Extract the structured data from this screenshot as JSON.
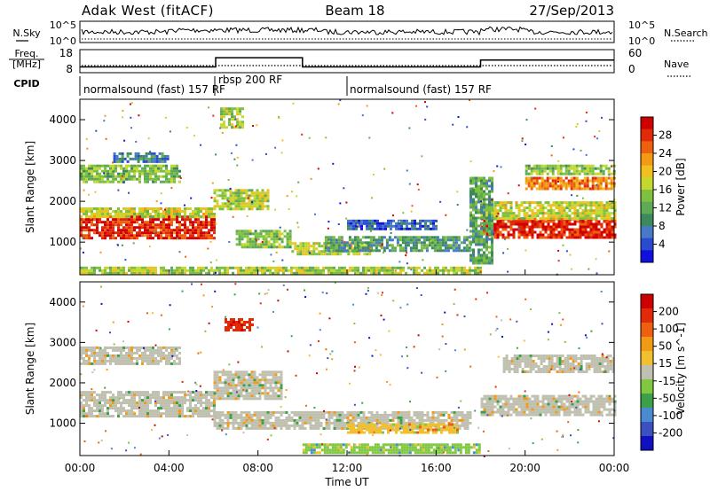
{
  "header": {
    "station": "Adak West (fitACF)",
    "beam": "Beam 18",
    "date": "27/Sep/2013"
  },
  "panels": {
    "nsky": {
      "label": "N.Sky",
      "right_label": "N.Search",
      "ticks_left": [
        "10^5",
        "10^0"
      ],
      "ticks_right": [
        "10^5",
        "10^0"
      ]
    },
    "freq": {
      "label_line1": "Freq.",
      "label_line2": "[MHz]",
      "right_label": "Nave",
      "ticks_left": [
        "18",
        "8"
      ],
      "ticks_right": [
        "60",
        "0"
      ],
      "freq_steps": [
        {
          "x_start": 0,
          "x_end": 6.1,
          "value": 10.5
        },
        {
          "x_start": 6.1,
          "x_end": 10,
          "value": 14.5
        },
        {
          "x_start": 10,
          "x_end": 18,
          "value": 10.5
        },
        {
          "x_start": 18,
          "x_end": 24,
          "value": 13.5
        }
      ]
    },
    "cpid": {
      "label": "CPID",
      "segments": [
        {
          "x_start": 0,
          "x_end": 6.1,
          "text": "normalsound (fast) 157 RF"
        },
        {
          "x_start": 6.1,
          "x_end": 12,
          "text": "rbsp 200 RF"
        },
        {
          "x_start": 12,
          "x_end": 24,
          "text": "normalsound (fast) 157 RF"
        }
      ]
    }
  },
  "chart_data": [
    {
      "type": "heatmap",
      "quantity": "Power",
      "ylabel": "Slant Range [km]",
      "y_ticks": [
        1000,
        2000,
        3000,
        4000
      ],
      "ylim": [
        200,
        4500
      ],
      "colorbar": {
        "label": "Power [dB]",
        "ticks": [
          "4",
          "8",
          "12",
          "16",
          "20",
          "24",
          "28"
        ],
        "colors": [
          "#1010e0",
          "#2a4bd0",
          "#4878c8",
          "#3c8a5a",
          "#5faa55",
          "#7fc040",
          "#c4d830",
          "#f0c020",
          "#f39a15",
          "#ee6010",
          "#e02a0a",
          "#d00000"
        ]
      },
      "bands": [
        {
          "t0": 0.0,
          "t1": 6.0,
          "r0": 1100,
          "r1": 1650,
          "level": 0.92
        },
        {
          "t0": 0.0,
          "t1": 6.0,
          "r0": 1650,
          "r1": 1850,
          "level": 0.55
        },
        {
          "t0": 0.0,
          "t1": 4.5,
          "r0": 2500,
          "r1": 2900,
          "level": 0.42
        },
        {
          "t0": 1.5,
          "t1": 4.0,
          "r0": 3000,
          "r1": 3200,
          "level": 0.22
        },
        {
          "t0": 6.0,
          "t1": 8.5,
          "r0": 1800,
          "r1": 2300,
          "level": 0.52
        },
        {
          "t0": 7.0,
          "t1": 9.5,
          "r0": 900,
          "r1": 1300,
          "level": 0.45
        },
        {
          "t0": 9.5,
          "t1": 13.0,
          "r0": 700,
          "r1": 1000,
          "level": 0.55
        },
        {
          "t0": 11.0,
          "t1": 17.5,
          "r0": 800,
          "r1": 1150,
          "level": 0.3
        },
        {
          "t0": 12.0,
          "t1": 16.0,
          "r0": 1300,
          "r1": 1550,
          "level": 0.15
        },
        {
          "t0": 0.0,
          "t1": 18.0,
          "r0": 250,
          "r1": 400,
          "level": 0.5
        },
        {
          "t0": 18.0,
          "t1": 24.0,
          "r0": 1100,
          "r1": 1600,
          "level": 0.92
        },
        {
          "t0": 18.0,
          "t1": 24.0,
          "r0": 1600,
          "r1": 2000,
          "level": 0.55
        },
        {
          "t0": 20.0,
          "t1": 24.0,
          "r0": 2300,
          "r1": 2600,
          "level": 0.78
        },
        {
          "t0": 20.0,
          "t1": 24.0,
          "r0": 2700,
          "r1": 2900,
          "level": 0.45
        },
        {
          "t0": 6.3,
          "t1": 7.3,
          "r0": 3800,
          "r1": 4300,
          "level": 0.5
        },
        {
          "t0": 17.5,
          "t1": 18.5,
          "r0": 500,
          "r1": 2600,
          "level": 0.35
        }
      ]
    },
    {
      "type": "heatmap",
      "quantity": "Velocity",
      "ylabel": "Slant Range [km]",
      "xlabel": "Time UT",
      "x_ticks": [
        "00:00",
        "04:00",
        "08:00",
        "12:00",
        "16:00",
        "20:00",
        "00:00"
      ],
      "y_ticks": [
        1000,
        2000,
        3000,
        4000
      ],
      "ylim": [
        200,
        4500
      ],
      "colorbar": {
        "label": "Velocity [m s^-1]",
        "ticks": [
          "200",
          "100",
          "50",
          "15",
          "-15",
          "-50",
          "-100",
          "-200"
        ],
        "colors": [
          "#1010c0",
          "#3c50c0",
          "#4a8ad0",
          "#3ca04a",
          "#80c840",
          "#c0c0b0",
          "#f0c030",
          "#f39a15",
          "#ee6010",
          "#e02a0a",
          "#d00000"
        ]
      },
      "bands": [
        {
          "t0": 0.0,
          "t1": 6.0,
          "r0": 1200,
          "r1": 1800,
          "level": 0.5
        },
        {
          "t0": 0.0,
          "t1": 4.5,
          "r0": 2500,
          "r1": 2900,
          "level": 0.5
        },
        {
          "t0": 6.0,
          "t1": 9.0,
          "r0": 1600,
          "r1": 2300,
          "level": 0.5
        },
        {
          "t0": 6.0,
          "t1": 17.5,
          "r0": 850,
          "r1": 1300,
          "level": 0.5
        },
        {
          "t0": 12.0,
          "t1": 17.0,
          "r0": 800,
          "r1": 1000,
          "level": 0.62
        },
        {
          "t0": 18.0,
          "t1": 24.0,
          "r0": 1200,
          "r1": 1700,
          "level": 0.5
        },
        {
          "t0": 19.0,
          "t1": 24.0,
          "r0": 2300,
          "r1": 2700,
          "level": 0.5
        },
        {
          "t0": 6.5,
          "t1": 7.8,
          "r0": 3300,
          "r1": 3600,
          "level": 0.85
        },
        {
          "t0": 10.0,
          "t1": 18.0,
          "r0": 300,
          "r1": 500,
          "level": 0.38
        }
      ]
    }
  ]
}
